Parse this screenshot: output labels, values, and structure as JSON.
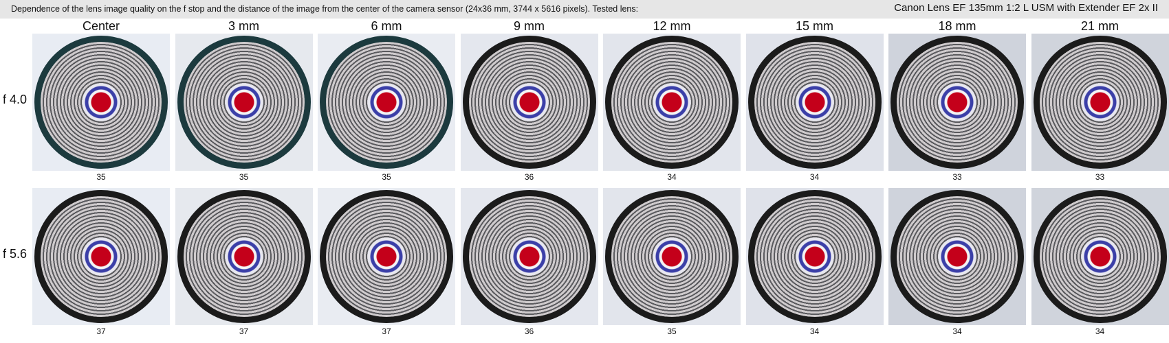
{
  "header": {
    "description": "Dependence of the lens image quality on the f stop and the distance of the image from the center of the camera sensor (24x36 mm, 3744 x 5616 pixels).  Tested lens:",
    "lens": "Canon Lens EF 135mm 1:2 L USM with Extender EF 2x II"
  },
  "columns": [
    "Center",
    "3 mm",
    "6 mm",
    "9 mm",
    "12 mm",
    "15 mm",
    "18 mm",
    "21 mm"
  ],
  "rows": [
    {
      "label": "f 4.0",
      "scores": [
        "35",
        "35",
        "35",
        "36",
        "34",
        "34",
        "33",
        "33"
      ]
    },
    {
      "label": "f 5.6",
      "scores": [
        "37",
        "37",
        "37",
        "36",
        "35",
        "34",
        "34",
        "34"
      ]
    }
  ]
}
